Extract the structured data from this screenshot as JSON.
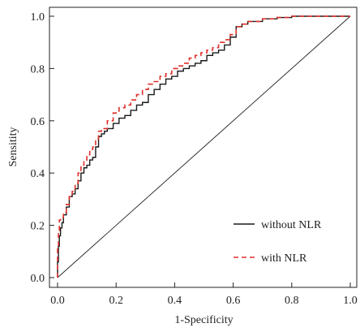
{
  "chart_data": {
    "type": "line",
    "title": "",
    "xlabel": "1-Specificity",
    "ylabel": "Sensitity",
    "xlim": [
      0,
      1
    ],
    "ylim": [
      0,
      1
    ],
    "xticks": [
      "0.0",
      "0.2",
      "0.4",
      "0.6",
      "0.8",
      "1.0"
    ],
    "yticks": [
      "0.0",
      "0.2",
      "0.4",
      "0.6",
      "0.8",
      "1.0"
    ],
    "grid": false,
    "legend_position": "bottom-right",
    "reference_line": {
      "x": [
        0,
        1
      ],
      "y": [
        0,
        1
      ],
      "color": "#222222"
    },
    "series": [
      {
        "name": "without NLR",
        "style": "solid",
        "color": "#1a1a1a",
        "x": [
          0,
          0.003,
          0.006,
          0.01,
          0.015,
          0.02,
          0.03,
          0.04,
          0.05,
          0.06,
          0.07,
          0.08,
          0.09,
          0.1,
          0.11,
          0.12,
          0.13,
          0.14,
          0.15,
          0.16,
          0.17,
          0.19,
          0.21,
          0.23,
          0.25,
          0.27,
          0.29,
          0.31,
          0.33,
          0.35,
          0.37,
          0.39,
          0.41,
          0.43,
          0.45,
          0.47,
          0.49,
          0.51,
          0.53,
          0.55,
          0.57,
          0.59,
          0.61,
          0.63,
          0.65,
          0.7,
          0.75,
          0.8,
          0.85,
          0.9,
          0.95,
          1.0
        ],
        "y": [
          0,
          0.06,
          0.12,
          0.16,
          0.19,
          0.21,
          0.24,
          0.27,
          0.31,
          0.32,
          0.34,
          0.37,
          0.4,
          0.42,
          0.43,
          0.45,
          0.46,
          0.5,
          0.54,
          0.55,
          0.56,
          0.57,
          0.59,
          0.61,
          0.62,
          0.64,
          0.66,
          0.67,
          0.7,
          0.72,
          0.74,
          0.76,
          0.77,
          0.79,
          0.8,
          0.81,
          0.82,
          0.83,
          0.85,
          0.86,
          0.87,
          0.89,
          0.92,
          0.96,
          0.97,
          0.98,
          0.99,
          0.995,
          1.0,
          1.0,
          1.0,
          1.0
        ]
      },
      {
        "name": "with NLR",
        "style": "dashed",
        "color": "#e0302a",
        "x": [
          0,
          0.003,
          0.006,
          0.01,
          0.015,
          0.02,
          0.03,
          0.04,
          0.05,
          0.06,
          0.07,
          0.08,
          0.09,
          0.1,
          0.11,
          0.12,
          0.13,
          0.14,
          0.15,
          0.16,
          0.17,
          0.19,
          0.21,
          0.23,
          0.25,
          0.27,
          0.29,
          0.31,
          0.33,
          0.35,
          0.37,
          0.39,
          0.41,
          0.43,
          0.45,
          0.47,
          0.49,
          0.51,
          0.53,
          0.55,
          0.57,
          0.59,
          0.61,
          0.63,
          0.65,
          0.7,
          0.75,
          0.8,
          0.85,
          0.9,
          0.95,
          1.0
        ],
        "y": [
          0,
          0.12,
          0.18,
          0.22,
          0.23,
          0.23,
          0.25,
          0.28,
          0.31,
          0.33,
          0.36,
          0.4,
          0.43,
          0.45,
          0.47,
          0.49,
          0.5,
          0.53,
          0.56,
          0.57,
          0.57,
          0.6,
          0.63,
          0.65,
          0.66,
          0.68,
          0.7,
          0.72,
          0.74,
          0.75,
          0.77,
          0.78,
          0.8,
          0.81,
          0.82,
          0.84,
          0.85,
          0.86,
          0.87,
          0.88,
          0.9,
          0.91,
          0.93,
          0.96,
          0.97,
          0.98,
          0.99,
          0.995,
          1.0,
          1.0,
          1.0,
          1.0
        ]
      }
    ]
  }
}
